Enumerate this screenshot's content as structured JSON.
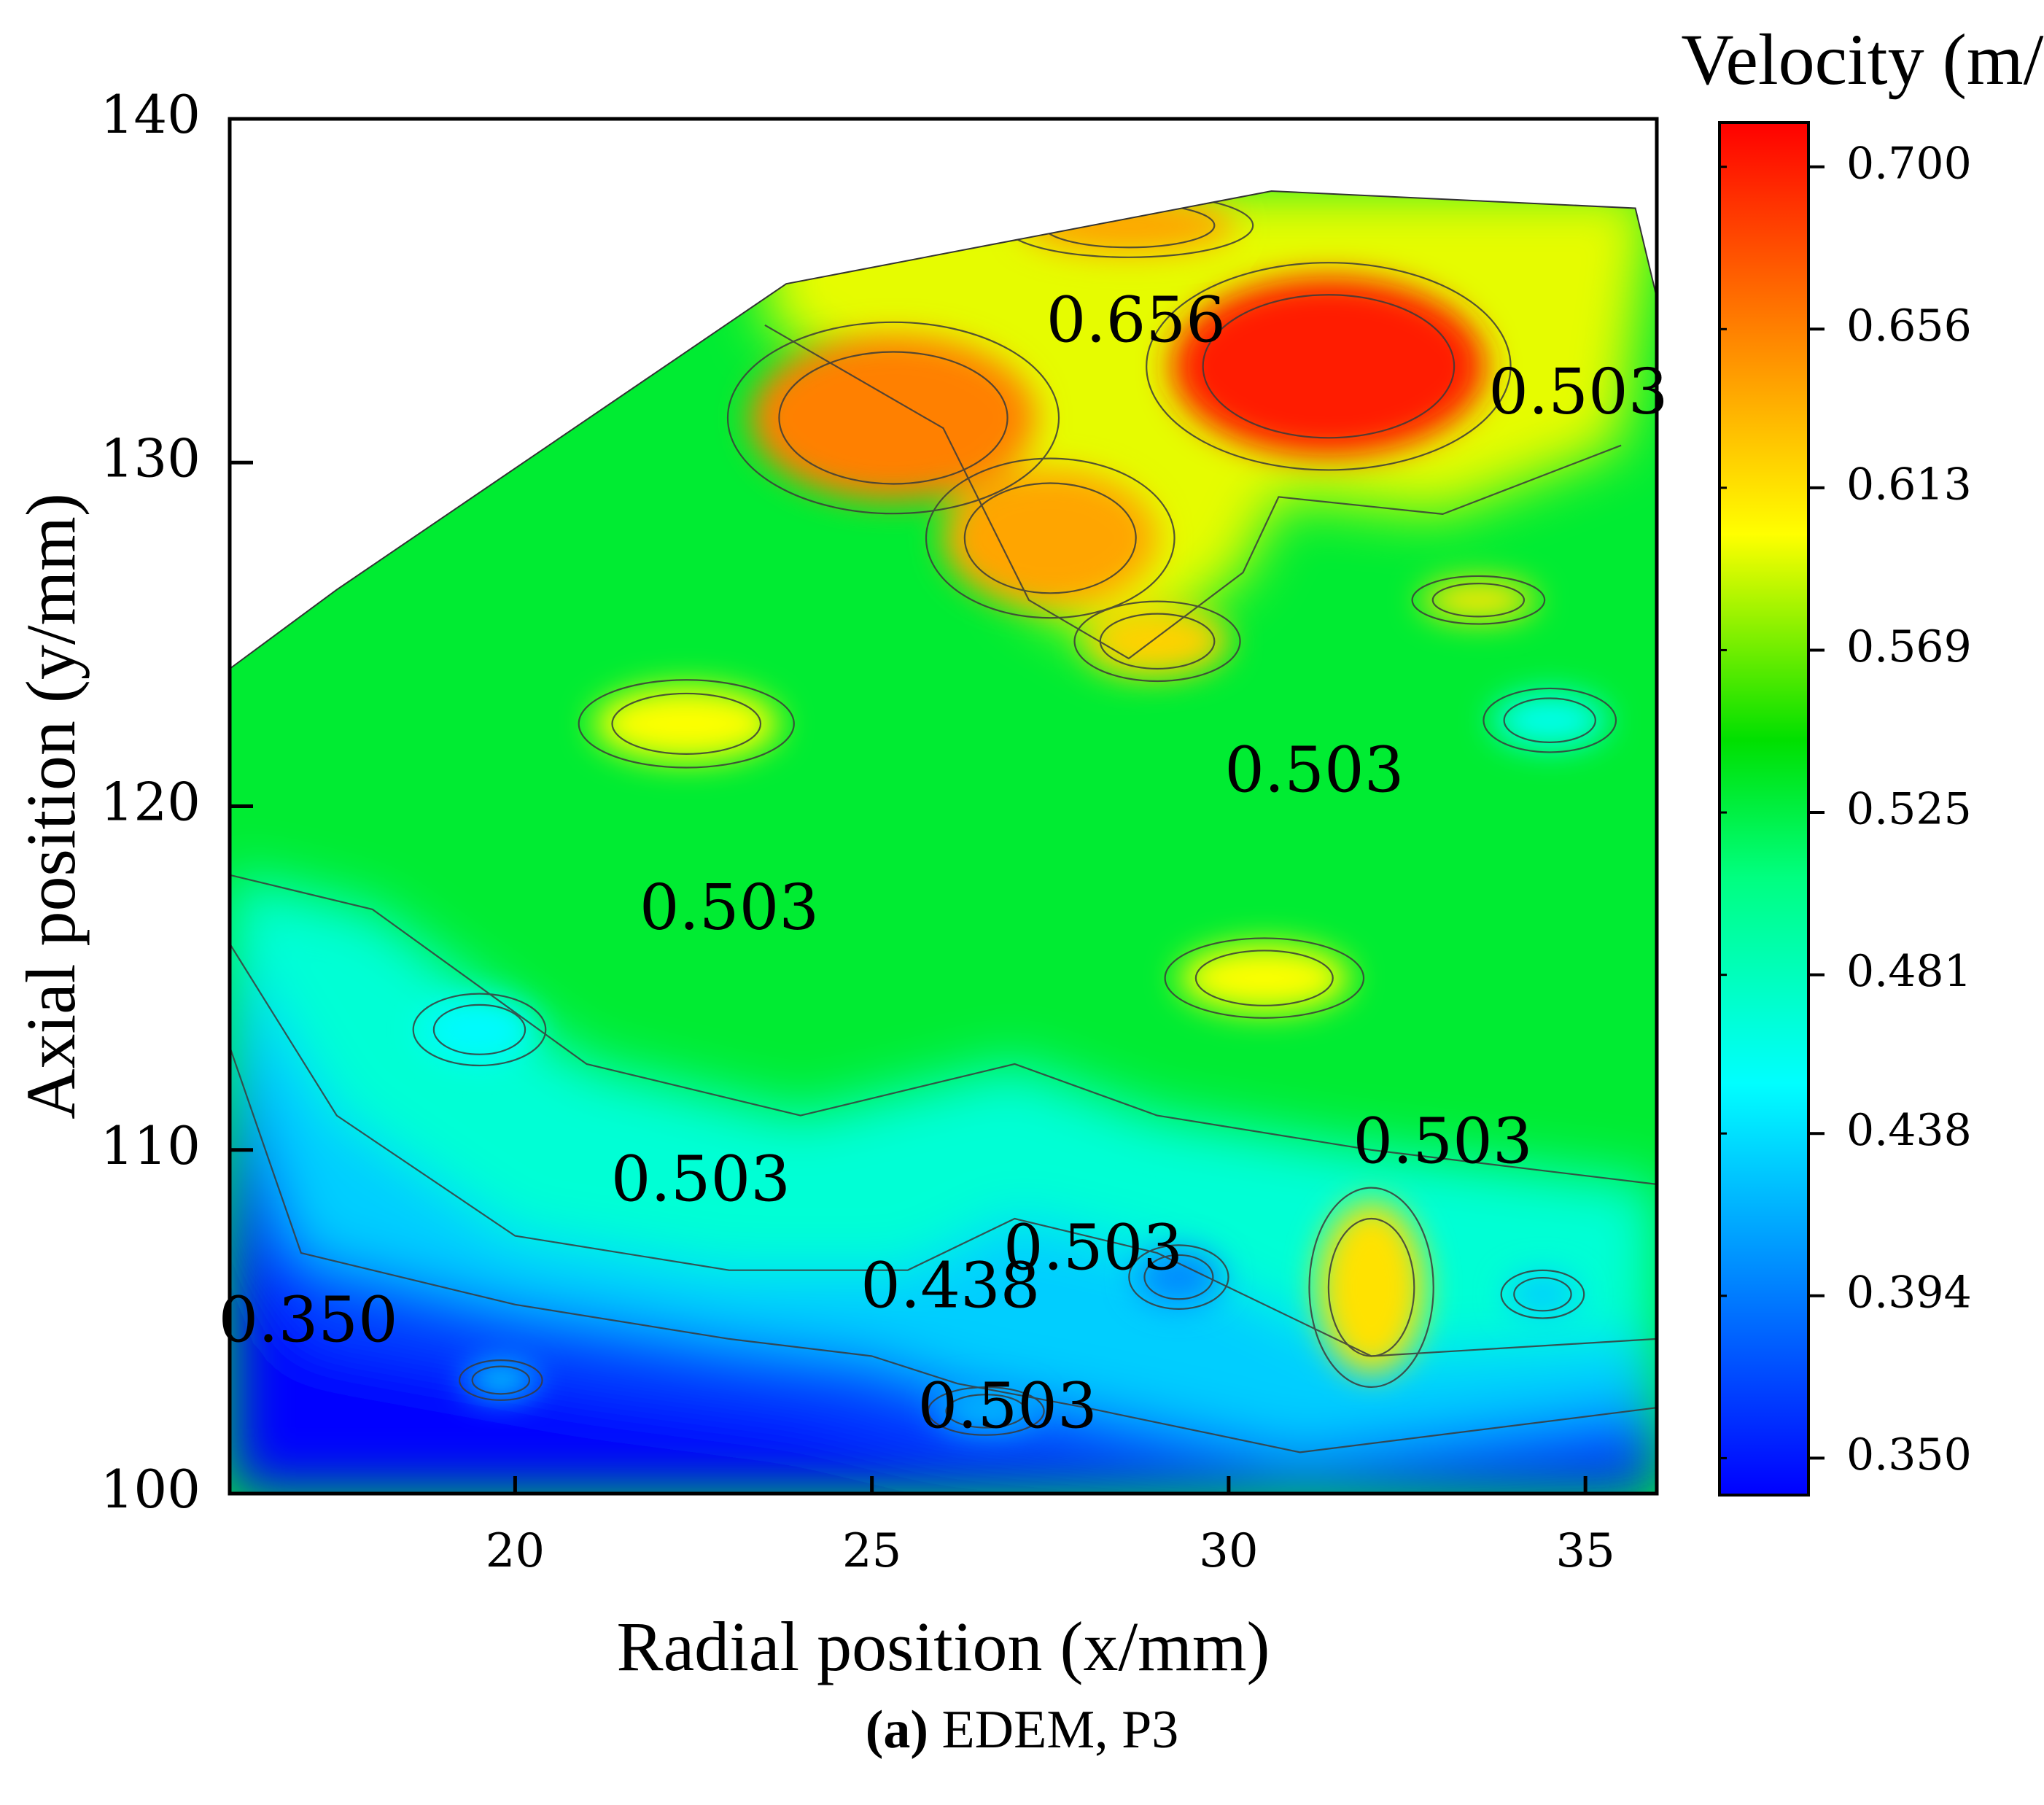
{
  "chart_data": {
    "type": "heatmap",
    "subtype": "filled-contour",
    "title": "Velocity (m/s)",
    "xlabel": "Radial position (x/mm)",
    "ylabel": "Axial position (y/mm)",
    "xlim": [
      16,
      36
    ],
    "ylim": [
      100,
      140
    ],
    "x_ticks": [
      "20",
      "25",
      "30",
      "35"
    ],
    "y_ticks": [
      "100",
      "110",
      "120",
      "130",
      "140"
    ],
    "colorbar": {
      "title": "Velocity (m/s)",
      "range": [
        0.34,
        0.712
      ],
      "ticks": [
        "0.350",
        "0.394",
        "0.438",
        "0.481",
        "0.525",
        "0.569",
        "0.613",
        "0.656",
        "0.700"
      ],
      "colors": [
        "#0000ff",
        "#0080ff",
        "#00ffff",
        "#00ff80",
        "#00e000",
        "#ffff00",
        "#ff8000",
        "#ff0000"
      ]
    },
    "domain_boundary": [
      {
        "x": 16,
        "y": 124
      },
      {
        "x": 17.5,
        "y": 126.3
      },
      {
        "x": 23.8,
        "y": 135.2
      },
      {
        "x": 30.6,
        "y": 137.9
      },
      {
        "x": 35.7,
        "y": 137.4
      },
      {
        "x": 36,
        "y": 134.8
      },
      {
        "x": 36,
        "y": 100
      },
      {
        "x": 16,
        "y": 100
      }
    ],
    "regions": [
      {
        "x": 31.4,
        "y": 132.8,
        "rx": 2.2,
        "ry": 2.6,
        "value": 0.7
      },
      {
        "x": 25.3,
        "y": 131.3,
        "rx": 2.0,
        "ry": 2.4,
        "value": 0.656
      },
      {
        "x": 27.5,
        "y": 127.8,
        "rx": 1.5,
        "ry": 2.0,
        "value": 0.64
      },
      {
        "x": 28.6,
        "y": 136.9,
        "rx": 1.5,
        "ry": 0.8,
        "value": 0.64
      },
      {
        "x": 32.0,
        "y": 106.0,
        "rx": 0.75,
        "ry": 2.5,
        "value": 0.613
      },
      {
        "x": 33.5,
        "y": 126.0,
        "rx": 0.8,
        "ry": 0.6,
        "value": 0.61
      },
      {
        "x": 30.5,
        "y": 115.0,
        "rx": 1.2,
        "ry": 1.0,
        "value": 0.6
      },
      {
        "x": 22.4,
        "y": 122.4,
        "rx": 1.3,
        "ry": 1.1,
        "value": 0.6
      },
      {
        "x": 29.0,
        "y": 124.8,
        "rx": 1.0,
        "ry": 1.0,
        "value": 0.62
      },
      {
        "x": 34.5,
        "y": 122.5,
        "rx": 0.8,
        "ry": 0.8,
        "value": 0.46
      },
      {
        "x": 19.5,
        "y": 113.5,
        "rx": 0.8,
        "ry": 0.9,
        "value": 0.45
      },
      {
        "x": 29.3,
        "y": 106.3,
        "rx": 0.6,
        "ry": 0.8,
        "value": 0.4
      },
      {
        "x": 26.6,
        "y": 102.4,
        "rx": 0.7,
        "ry": 0.6,
        "value": 0.42
      },
      {
        "x": 34.4,
        "y": 105.8,
        "rx": 0.5,
        "ry": 0.6,
        "value": 0.43
      },
      {
        "x": 19.8,
        "y": 103.3,
        "rx": 0.5,
        "ry": 0.5,
        "value": 0.43
      }
    ],
    "contour_labels": [
      {
        "text": "0.656",
        "x": 28.7,
        "y": 134.0
      },
      {
        "text": "0.503",
        "x": 34.9,
        "y": 131.9
      },
      {
        "text": "0.503",
        "x": 31.2,
        "y": 120.9
      },
      {
        "text": "0.503",
        "x": 23.0,
        "y": 116.9
      },
      {
        "text": "0.503",
        "x": 22.6,
        "y": 109.0
      },
      {
        "text": "0.503",
        "x": 28.1,
        "y": 107.0
      },
      {
        "text": "0.438",
        "x": 26.1,
        "y": 105.9
      },
      {
        "text": "0.350",
        "x": 17.1,
        "y": 104.9
      },
      {
        "text": "0.503",
        "x": 33.0,
        "y": 110.1
      },
      {
        "text": "0.503",
        "x": 26.9,
        "y": 102.4
      }
    ]
  },
  "caption": {
    "label": "(a)",
    "text": " EDEM, P3"
  }
}
